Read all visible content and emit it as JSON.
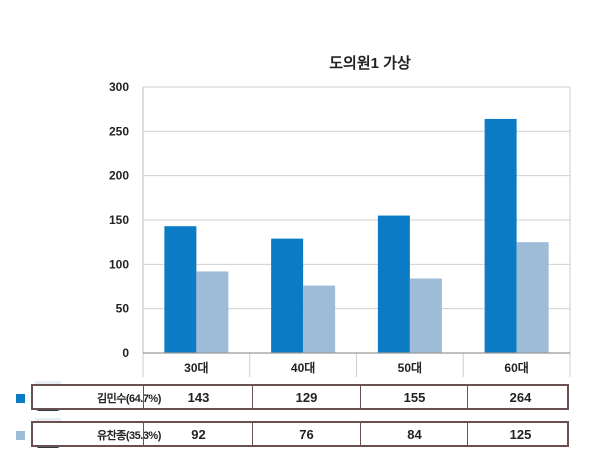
{
  "chart_data": {
    "type": "bar",
    "title": "도의원1 가상",
    "categories": [
      "30대",
      "40대",
      "50대",
      "60대"
    ],
    "ylim": [
      0,
      300
    ],
    "yticks": [
      0,
      50,
      100,
      150,
      200,
      250,
      300
    ],
    "grid": true,
    "legend": "table-below",
    "series": [
      {
        "name": "김민수(64.7%)",
        "color": "#0a7bc4",
        "values": [
          143,
          129,
          155,
          264
        ]
      },
      {
        "name": "유찬종(35.3%)",
        "color": "#9ebbd8",
        "values": [
          92,
          76,
          84,
          125
        ]
      }
    ]
  },
  "table": {
    "rows": [
      {
        "label": "김민수(64.7%)",
        "values": [
          "143",
          "129",
          "155",
          "264"
        ],
        "color": "#0a7bc4",
        "avatar": "candidate-photo-icon"
      },
      {
        "label": "유찬종(35.3%)",
        "values": [
          "92",
          "76",
          "84",
          "125"
        ],
        "color": "#9ebbd8",
        "avatar": "candidate-photo-icon"
      }
    ]
  }
}
